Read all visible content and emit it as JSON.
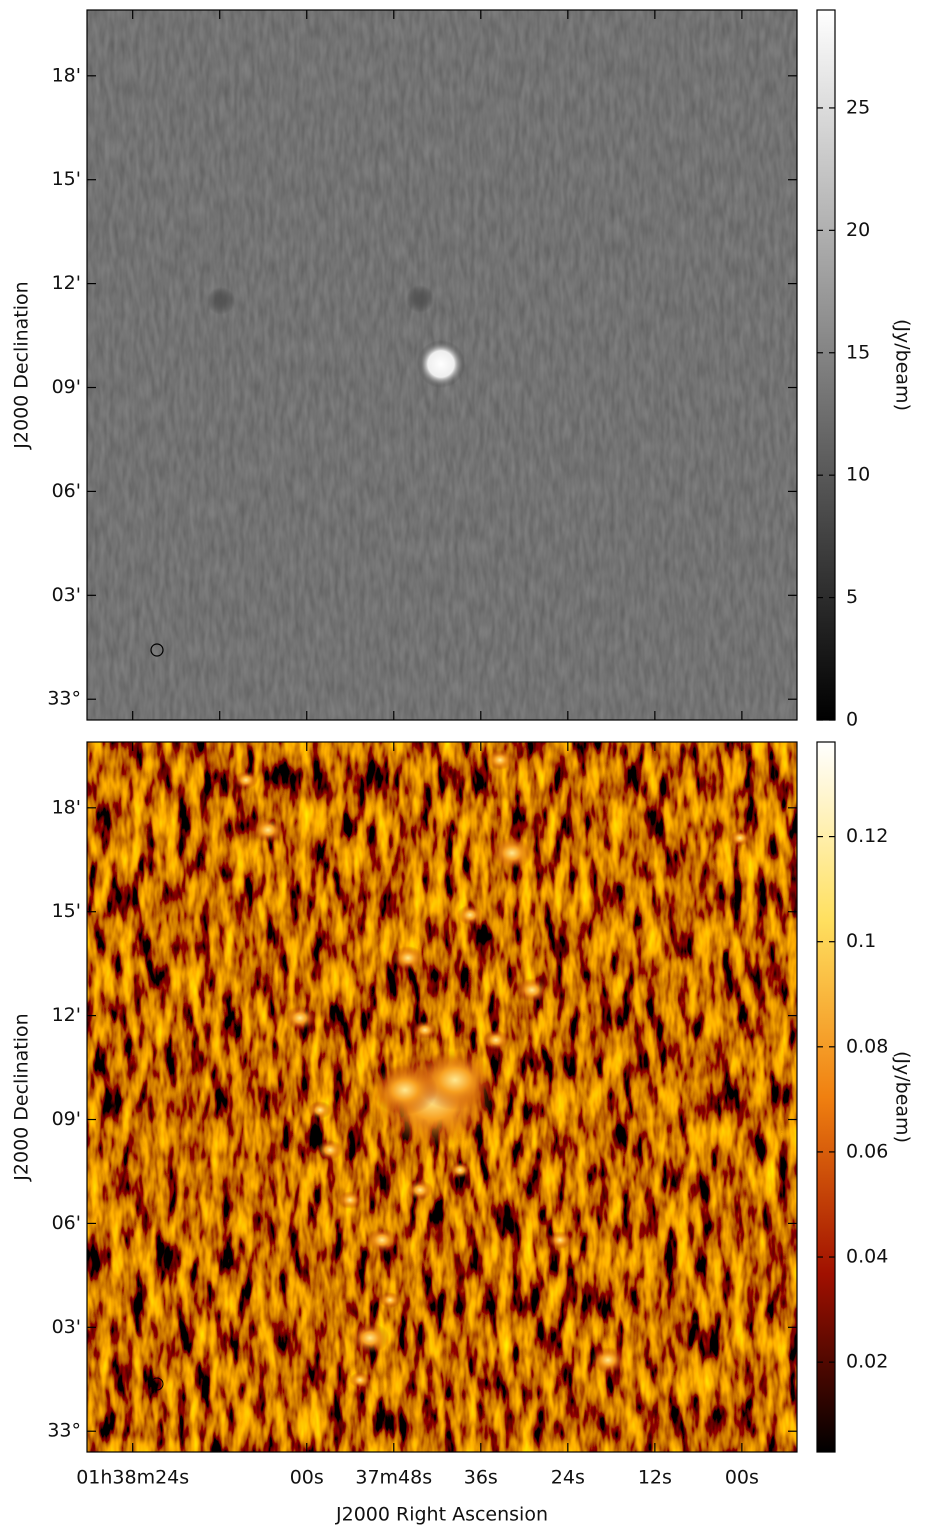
{
  "chart_data": [
    {
      "type": "image",
      "ylabel": "J2000 Declination",
      "colorbar_label": "(Jy/beam)",
      "ylim": [
        -0.6,
        19.9
      ],
      "yticks": [
        {
          "value": 0,
          "label": "33°"
        },
        {
          "value": 3,
          "label": "03'"
        },
        {
          "value": 6,
          "label": "06'"
        },
        {
          "value": 9,
          "label": "09'"
        },
        {
          "value": 12,
          "label": "12'"
        },
        {
          "value": 15,
          "label": "15'"
        },
        {
          "value": 18,
          "label": "18'"
        }
      ],
      "xlim": [
        5910.3,
        5812.4
      ],
      "xticks": [
        5904,
        5892,
        5880,
        5868,
        5856,
        5844,
        5832,
        5820
      ],
      "clim": [
        0,
        29
      ],
      "cticks": [
        0,
        5,
        10,
        15,
        20,
        25
      ],
      "colormap": "gray"
    },
    {
      "type": "image",
      "ylabel": "J2000 Declination",
      "xlabel": "J2000 Right Ascension",
      "colorbar_label": "(Jy/beam)",
      "ylim": [
        -0.6,
        19.9
      ],
      "yticks": [
        {
          "value": 0,
          "label": "33°"
        },
        {
          "value": 3,
          "label": "03'"
        },
        {
          "value": 6,
          "label": "06'"
        },
        {
          "value": 9,
          "label": "09'"
        },
        {
          "value": 12,
          "label": "12'"
        },
        {
          "value": 15,
          "label": "15'"
        },
        {
          "value": 18,
          "label": "18'"
        }
      ],
      "xlim": [
        5910.3,
        5812.4
      ],
      "xticks": [
        {
          "value": 5904,
          "label": "01h38m24s"
        },
        {
          "value": 5880,
          "label": "00s"
        },
        {
          "value": 5868,
          "label": "37m48s"
        },
        {
          "value": 5856,
          "label": "36s"
        },
        {
          "value": 5844,
          "label": "24s"
        },
        {
          "value": 5832,
          "label": "12s"
        },
        {
          "value": 5820,
          "label": "00s"
        }
      ],
      "clim": [
        0.0029,
        0.138
      ],
      "cticks": [
        0.02,
        0.04,
        0.06,
        0.08,
        0.1,
        0.12
      ],
      "colormap": "heat"
    }
  ]
}
